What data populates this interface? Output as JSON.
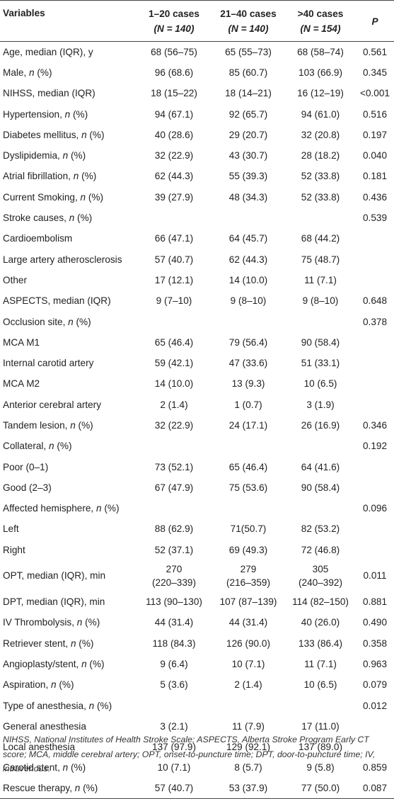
{
  "header": {
    "variables": "Variables",
    "g1": "1–20 cases",
    "g1n": "(N = 140)",
    "g2": "21–40 cases",
    "g2n": "(N = 140)",
    "g3": ">40 cases",
    "g3n": "(N = 154)",
    "p": "P"
  },
  "rows": [
    {
      "label": "Age, median (IQR), y",
      "v1": "68 (56–75)",
      "v2": "65 (55–73)",
      "v3": "68 (58–74)",
      "p": "0.561"
    },
    {
      "label": "Male, ",
      "it": "n",
      "rest": " (%)",
      "v1": "96 (68.6)",
      "v2": "85 (60.7)",
      "v3": "103 (66.9)",
      "p": "0.345"
    },
    {
      "label": "NIHSS, median (IQR)",
      "v1": "18 (15–22)",
      "v2": "18 (14–21)",
      "v3": "16 (12–19)",
      "p": "<0.001"
    },
    {
      "label": "Hypertension, ",
      "it": "n",
      "rest": " (%)",
      "v1": "94 (67.1)",
      "v2": "92 (65.7)",
      "v3": "94 (61.0)",
      "p": "0.516"
    },
    {
      "label": "Diabetes mellitus, ",
      "it": "n",
      "rest": " (%)",
      "v1": "40 (28.6)",
      "v2": "29 (20.7)",
      "v3": "32 (20.8)",
      "p": "0.197"
    },
    {
      "label": "Dyslipidemia, ",
      "it": "n",
      "rest": " (%)",
      "v1": "32 (22.9)",
      "v2": "43 (30.7)",
      "v3": "28 (18.2)",
      "p": "0.040"
    },
    {
      "label": "Atrial fibrillation, ",
      "it": "n",
      "rest": " (%)",
      "v1": "62 (44.3)",
      "v2": "55 (39.3)",
      "v3": "52 (33.8)",
      "p": "0.181"
    },
    {
      "label": "Current Smoking, ",
      "it": "n",
      "rest": " (%)",
      "v1": "39 (27.9)",
      "v2": "48 (34.3)",
      "v3": "52 (33.8)",
      "p": "0.436"
    },
    {
      "label": "Stroke causes, ",
      "it": "n",
      "rest": " (%)",
      "v1": "",
      "v2": "",
      "v3": "",
      "p": "0.539"
    },
    {
      "label": "Cardioembolism",
      "v1": "66 (47.1)",
      "v2": "64 (45.7)",
      "v3": "68 (44.2)",
      "p": ""
    },
    {
      "label": "Large artery atherosclerosis",
      "v1": "57 (40.7)",
      "v2": "62 (44.3)",
      "v3": "75 (48.7)",
      "p": ""
    },
    {
      "label": "Other",
      "v1": "17 (12.1)",
      "v2": "14 (10.0)",
      "v3": "11 (7.1)",
      "p": ""
    },
    {
      "label": "ASPECTS, median (IQR)",
      "v1": "9 (7–10)",
      "v2": "9 (8–10)",
      "v3": "9 (8–10)",
      "p": "0.648"
    },
    {
      "label": "Occlusion site, ",
      "it": "n",
      "rest": " (%)",
      "v1": "",
      "v2": "",
      "v3": "",
      "p": "0.378"
    },
    {
      "label": "MCA M1",
      "v1": "65 (46.4)",
      "v2": "79 (56.4)",
      "v3": "90 (58.4)",
      "p": ""
    },
    {
      "label": "Internal carotid artery",
      "v1": "59 (42.1)",
      "v2": "47 (33.6)",
      "v3": "51 (33.1)",
      "p": ""
    },
    {
      "label": "MCA M2",
      "v1": "14 (10.0)",
      "v2": "13 (9.3)",
      "v3": "10 (6.5)",
      "p": ""
    },
    {
      "label": "Anterior cerebral artery",
      "v1": "2 (1.4)",
      "v2": "1 (0.7)",
      "v3": "3 (1.9)",
      "p": ""
    },
    {
      "label": "Tandem lesion, ",
      "it": "n",
      "rest": " (%)",
      "v1": "32 (22.9)",
      "v2": "24 (17.1)",
      "v3": "26 (16.9)",
      "p": "0.346"
    },
    {
      "label": "Collateral, ",
      "it": "n",
      "rest": " (%)",
      "v1": "",
      "v2": "",
      "v3": "",
      "p": "0.192"
    },
    {
      "label": "Poor (0–1)",
      "v1": "73 (52.1)",
      "v2": "65 (46.4)",
      "v3": "64 (41.6)",
      "p": ""
    },
    {
      "label": "Good (2–3)",
      "v1": "67 (47.9)",
      "v2": "75 (53.6)",
      "v3": "90 (58.4)",
      "p": ""
    },
    {
      "label": "Affected hemisphere, ",
      "it": "n",
      "rest": " (%)",
      "v1": "",
      "v2": "",
      "v3": "",
      "p": "0.096"
    },
    {
      "label": "Left",
      "v1": "88 (62.9)",
      "v2": "71(50.7)",
      "v3": "82 (53.2)",
      "p": ""
    },
    {
      "label": "Right",
      "v1": "52 (37.1)",
      "v2": "69 (49.3)",
      "v3": "72 (46.8)",
      "p": ""
    },
    {
      "label": "OPT, median (IQR), min",
      "v1": "270",
      "v1b": "(220–339)",
      "v2": "279",
      "v2b": "(216–359)",
      "v3": "305",
      "v3b": "(240–392)",
      "p": "0.011",
      "tall": true
    },
    {
      "label": "DPT, median (IQR), min",
      "v1": "113 (90–130)",
      "v2": "107 (87–139)",
      "v3": "114 (82–150)",
      "p": "0.881"
    },
    {
      "label": "IV Thrombolysis, ",
      "it": "n",
      "rest": " (%)",
      "v1": "44 (31.4)",
      "v2": "44 (31.4)",
      "v3": "40 (26.0)",
      "p": "0.490"
    },
    {
      "label": "Retriever stent, ",
      "it": "n",
      "rest": " (%)",
      "v1": "118 (84.3)",
      "v2": "126 (90.0)",
      "v3": "133 (86.4)",
      "p": "0.358"
    },
    {
      "label": "Angioplasty/stent, ",
      "it": "n",
      "rest": " (%)",
      "v1": "9 (6.4)",
      "v2": "10 (7.1)",
      "v3": "11 (7.1)",
      "p": "0.963"
    },
    {
      "label": "Aspiration, ",
      "it": "n",
      "rest": " (%)",
      "v1": "5 (3.6)",
      "v2": "2 (1.4)",
      "v3": "10 (6.5)",
      "p": "0.079"
    },
    {
      "label": "Type of anesthesia, ",
      "it": "n",
      "rest": " (%)",
      "v1": "",
      "v2": "",
      "v3": "",
      "p": "0.012"
    },
    {
      "label": "General anesthesia",
      "v1": "3 (2.1)",
      "v2": "11 (7.9)",
      "v3": "17 (11.0)",
      "p": ""
    },
    {
      "label": "Local anesthesia",
      "v1": "137 (97.9)",
      "v2": "129 (92.1)",
      "v3": "137 (89.0)",
      "p": ""
    },
    {
      "label": "Carotid stent, ",
      "it": "n",
      "rest": " (%)",
      "v1": "10 (7.1)",
      "v2": "8 (5.7)",
      "v3": "9 (5.8)",
      "p": "0.859"
    },
    {
      "label": "Rescue therapy, ",
      "it": "n",
      "rest": " (%)",
      "v1": "57 (40.7)",
      "v2": "53 (37.9)",
      "v3": "77 (50.0)",
      "p": "0.087"
    }
  ],
  "footnote": "NIHSS, National Institutes of Health Stroke Scale; ASPECTS, Alberta Stroke Program Early CT score; MCA, middle cerebral artery; OPT, onset-to-puncture time; DPT, door-to-puncture time; IV, intravenous."
}
